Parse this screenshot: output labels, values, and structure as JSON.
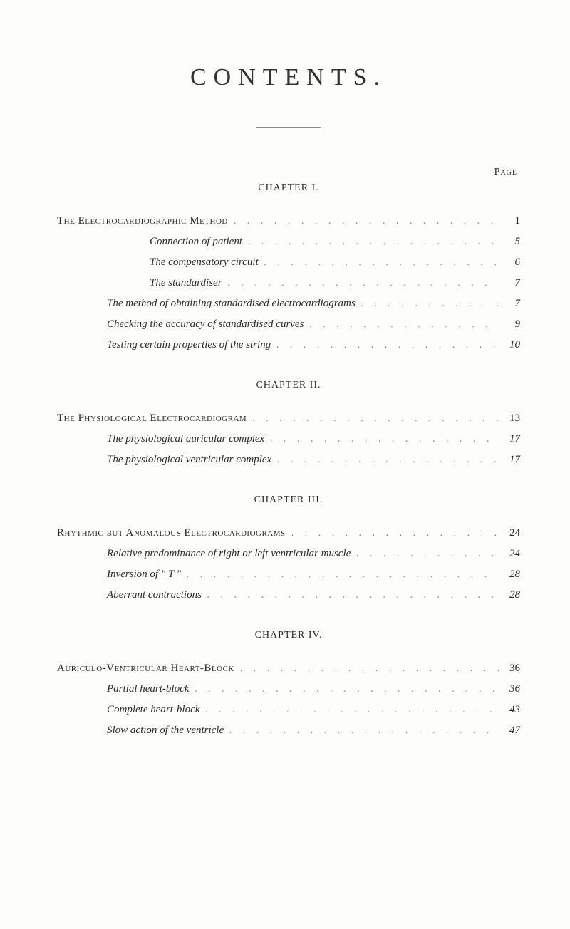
{
  "title": "CONTENTS.",
  "page_label": "Page",
  "background_color": "#fdfdfb",
  "text_color": "#2a2a2a",
  "leader_color": "#777777",
  "title_letter_spacing": 10,
  "title_fontsize": 34,
  "body_fontsize": 15,
  "font_family": "Georgia, Times New Roman, serif",
  "chapters": [
    {
      "label": "CHAPTER I.",
      "entries": [
        {
          "level": 0,
          "text": "The Electrocardiographic Method",
          "page": "1"
        },
        {
          "level": 2,
          "text": "Connection of patient",
          "page": "5"
        },
        {
          "level": 2,
          "text": "The compensatory circuit",
          "page": "6"
        },
        {
          "level": 2,
          "text": "The standardiser",
          "page": "7"
        },
        {
          "level": 1,
          "text": "The method of obtaining standardised electrocardiograms",
          "page": "7"
        },
        {
          "level": 1,
          "text": "Checking the accuracy of standardised curves",
          "page": "9"
        },
        {
          "level": 1,
          "text": "Testing certain properties of the string",
          "page": "10"
        }
      ]
    },
    {
      "label": "CHAPTER II.",
      "entries": [
        {
          "level": 0,
          "text": "The Physiological Electrocardiogram",
          "page": "13"
        },
        {
          "level": 1,
          "text": "The physiological auricular complex",
          "page": "17"
        },
        {
          "level": 1,
          "text": "The physiological ventricular complex",
          "page": "17"
        }
      ]
    },
    {
      "label": "CHAPTER III.",
      "entries": [
        {
          "level": 0,
          "text": "Rhythmic but Anomalous Electrocardiograms",
          "page": "24"
        },
        {
          "level": 1,
          "text": "Relative predominance of right or left ventricular muscle",
          "page": "24"
        },
        {
          "level": 1,
          "text": "Inversion of \" T \"",
          "page": "28"
        },
        {
          "level": 1,
          "text": "Aberrant contractions",
          "page": "28"
        }
      ]
    },
    {
      "label": "CHAPTER IV.",
      "entries": [
        {
          "level": 0,
          "text": "Auriculo-Ventricular Heart-Block",
          "page": "36"
        },
        {
          "level": 1,
          "text": "Partial heart-block",
          "page": "36"
        },
        {
          "level": 1,
          "text": "Complete heart-block",
          "page": "43"
        },
        {
          "level": 1,
          "text": "Slow action of the ventricle",
          "page": "47"
        }
      ]
    }
  ]
}
